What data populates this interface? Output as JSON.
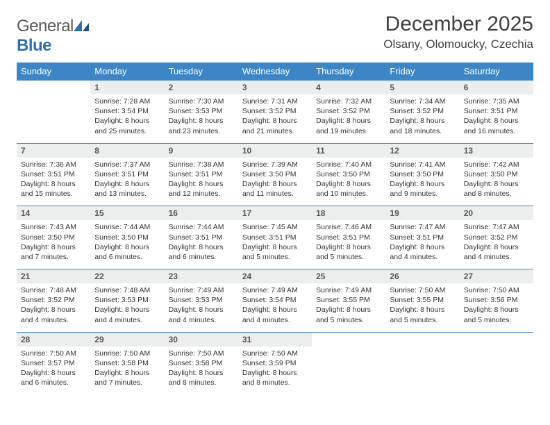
{
  "brand": {
    "name_part1": "General",
    "name_part2": "Blue"
  },
  "title": "December 2025",
  "location": "Olsany, Olomoucky, Czechia",
  "colors": {
    "header_bg": "#3d86c6",
    "header_text": "#ffffff",
    "daynum_bg": "#eceded",
    "cell_border": "#3d86c6",
    "body_text": "#333333",
    "title_text": "#404040",
    "logo_gray": "#5a5a5a",
    "logo_blue": "#2f6fb0",
    "background": "#ffffff"
  },
  "fonts": {
    "title_size_pt": 22,
    "location_size_pt": 13,
    "header_size_pt": 10,
    "cell_size_pt": 8
  },
  "weekdays": [
    "Sunday",
    "Monday",
    "Tuesday",
    "Wednesday",
    "Thursday",
    "Friday",
    "Saturday"
  ],
  "weeks": [
    [
      null,
      {
        "n": "1",
        "sr": "Sunrise: 7:28 AM",
        "ss": "Sunset: 3:54 PM",
        "d1": "Daylight: 8 hours",
        "d2": "and 25 minutes."
      },
      {
        "n": "2",
        "sr": "Sunrise: 7:30 AM",
        "ss": "Sunset: 3:53 PM",
        "d1": "Daylight: 8 hours",
        "d2": "and 23 minutes."
      },
      {
        "n": "3",
        "sr": "Sunrise: 7:31 AM",
        "ss": "Sunset: 3:52 PM",
        "d1": "Daylight: 8 hours",
        "d2": "and 21 minutes."
      },
      {
        "n": "4",
        "sr": "Sunrise: 7:32 AM",
        "ss": "Sunset: 3:52 PM",
        "d1": "Daylight: 8 hours",
        "d2": "and 19 minutes."
      },
      {
        "n": "5",
        "sr": "Sunrise: 7:34 AM",
        "ss": "Sunset: 3:52 PM",
        "d1": "Daylight: 8 hours",
        "d2": "and 18 minutes."
      },
      {
        "n": "6",
        "sr": "Sunrise: 7:35 AM",
        "ss": "Sunset: 3:51 PM",
        "d1": "Daylight: 8 hours",
        "d2": "and 16 minutes."
      }
    ],
    [
      {
        "n": "7",
        "sr": "Sunrise: 7:36 AM",
        "ss": "Sunset: 3:51 PM",
        "d1": "Daylight: 8 hours",
        "d2": "and 15 minutes."
      },
      {
        "n": "8",
        "sr": "Sunrise: 7:37 AM",
        "ss": "Sunset: 3:51 PM",
        "d1": "Daylight: 8 hours",
        "d2": "and 13 minutes."
      },
      {
        "n": "9",
        "sr": "Sunrise: 7:38 AM",
        "ss": "Sunset: 3:51 PM",
        "d1": "Daylight: 8 hours",
        "d2": "and 12 minutes."
      },
      {
        "n": "10",
        "sr": "Sunrise: 7:39 AM",
        "ss": "Sunset: 3:50 PM",
        "d1": "Daylight: 8 hours",
        "d2": "and 11 minutes."
      },
      {
        "n": "11",
        "sr": "Sunrise: 7:40 AM",
        "ss": "Sunset: 3:50 PM",
        "d1": "Daylight: 8 hours",
        "d2": "and 10 minutes."
      },
      {
        "n": "12",
        "sr": "Sunrise: 7:41 AM",
        "ss": "Sunset: 3:50 PM",
        "d1": "Daylight: 8 hours",
        "d2": "and 9 minutes."
      },
      {
        "n": "13",
        "sr": "Sunrise: 7:42 AM",
        "ss": "Sunset: 3:50 PM",
        "d1": "Daylight: 8 hours",
        "d2": "and 8 minutes."
      }
    ],
    [
      {
        "n": "14",
        "sr": "Sunrise: 7:43 AM",
        "ss": "Sunset: 3:50 PM",
        "d1": "Daylight: 8 hours",
        "d2": "and 7 minutes."
      },
      {
        "n": "15",
        "sr": "Sunrise: 7:44 AM",
        "ss": "Sunset: 3:50 PM",
        "d1": "Daylight: 8 hours",
        "d2": "and 6 minutes."
      },
      {
        "n": "16",
        "sr": "Sunrise: 7:44 AM",
        "ss": "Sunset: 3:51 PM",
        "d1": "Daylight: 8 hours",
        "d2": "and 6 minutes."
      },
      {
        "n": "17",
        "sr": "Sunrise: 7:45 AM",
        "ss": "Sunset: 3:51 PM",
        "d1": "Daylight: 8 hours",
        "d2": "and 5 minutes."
      },
      {
        "n": "18",
        "sr": "Sunrise: 7:46 AM",
        "ss": "Sunset: 3:51 PM",
        "d1": "Daylight: 8 hours",
        "d2": "and 5 minutes."
      },
      {
        "n": "19",
        "sr": "Sunrise: 7:47 AM",
        "ss": "Sunset: 3:51 PM",
        "d1": "Daylight: 8 hours",
        "d2": "and 4 minutes."
      },
      {
        "n": "20",
        "sr": "Sunrise: 7:47 AM",
        "ss": "Sunset: 3:52 PM",
        "d1": "Daylight: 8 hours",
        "d2": "and 4 minutes."
      }
    ],
    [
      {
        "n": "21",
        "sr": "Sunrise: 7:48 AM",
        "ss": "Sunset: 3:52 PM",
        "d1": "Daylight: 8 hours",
        "d2": "and 4 minutes."
      },
      {
        "n": "22",
        "sr": "Sunrise: 7:48 AM",
        "ss": "Sunset: 3:53 PM",
        "d1": "Daylight: 8 hours",
        "d2": "and 4 minutes."
      },
      {
        "n": "23",
        "sr": "Sunrise: 7:49 AM",
        "ss": "Sunset: 3:53 PM",
        "d1": "Daylight: 8 hours",
        "d2": "and 4 minutes."
      },
      {
        "n": "24",
        "sr": "Sunrise: 7:49 AM",
        "ss": "Sunset: 3:54 PM",
        "d1": "Daylight: 8 hours",
        "d2": "and 4 minutes."
      },
      {
        "n": "25",
        "sr": "Sunrise: 7:49 AM",
        "ss": "Sunset: 3:55 PM",
        "d1": "Daylight: 8 hours",
        "d2": "and 5 minutes."
      },
      {
        "n": "26",
        "sr": "Sunrise: 7:50 AM",
        "ss": "Sunset: 3:55 PM",
        "d1": "Daylight: 8 hours",
        "d2": "and 5 minutes."
      },
      {
        "n": "27",
        "sr": "Sunrise: 7:50 AM",
        "ss": "Sunset: 3:56 PM",
        "d1": "Daylight: 8 hours",
        "d2": "and 5 minutes."
      }
    ],
    [
      {
        "n": "28",
        "sr": "Sunrise: 7:50 AM",
        "ss": "Sunset: 3:57 PM",
        "d1": "Daylight: 8 hours",
        "d2": "and 6 minutes."
      },
      {
        "n": "29",
        "sr": "Sunrise: 7:50 AM",
        "ss": "Sunset: 3:58 PM",
        "d1": "Daylight: 8 hours",
        "d2": "and 7 minutes."
      },
      {
        "n": "30",
        "sr": "Sunrise: 7:50 AM",
        "ss": "Sunset: 3:58 PM",
        "d1": "Daylight: 8 hours",
        "d2": "and 8 minutes."
      },
      {
        "n": "31",
        "sr": "Sunrise: 7:50 AM",
        "ss": "Sunset: 3:59 PM",
        "d1": "Daylight: 8 hours",
        "d2": "and 8 minutes."
      },
      null,
      null,
      null
    ]
  ]
}
